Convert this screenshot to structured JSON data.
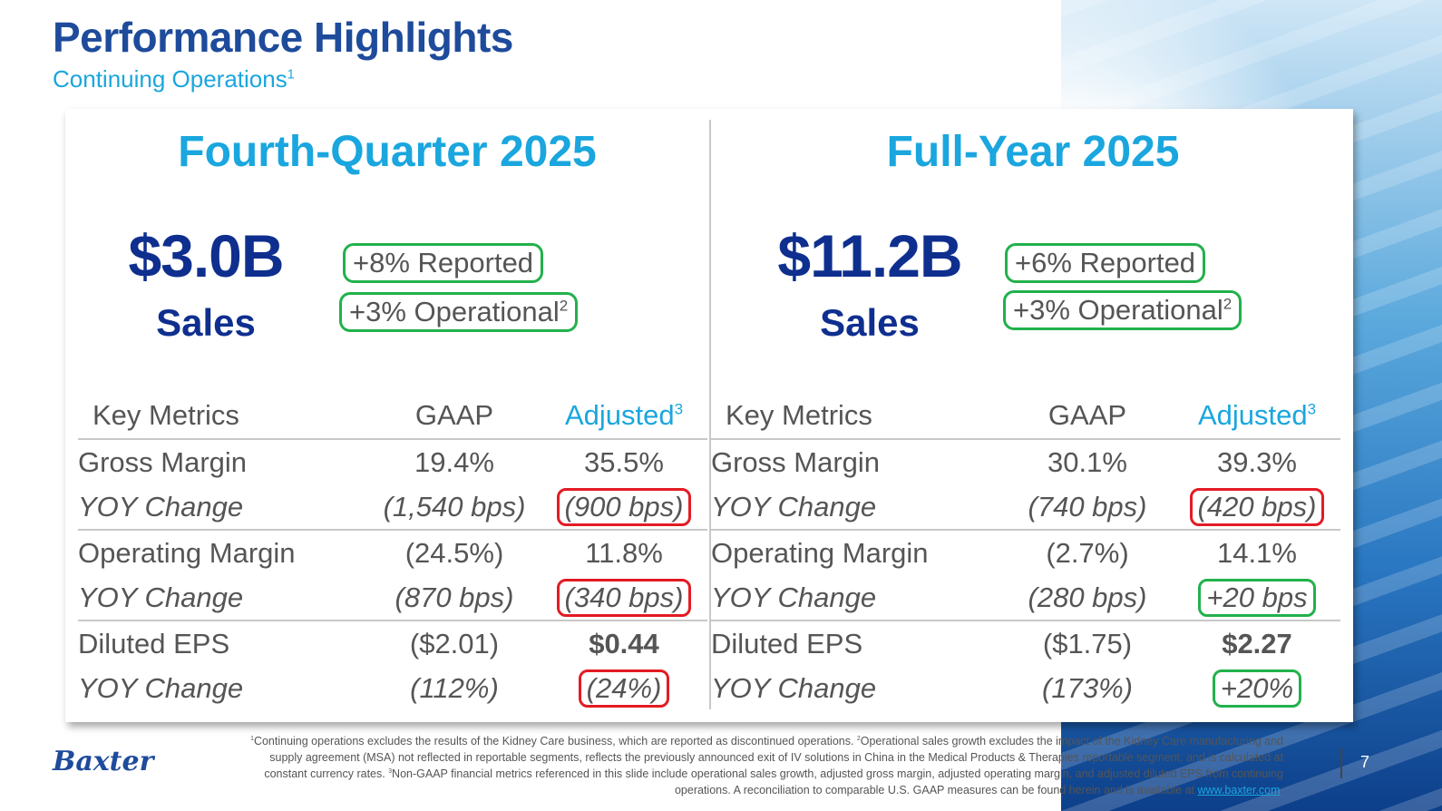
{
  "header": {
    "title": "Performance Highlights",
    "subtitle": "Continuing Operations",
    "subtitle_sup": "1"
  },
  "panels": [
    {
      "title": "Fourth-Quarter 2025",
      "sales_value": "$3.0B",
      "sales_label": "Sales",
      "reported_growth": "+8% Reported",
      "operational_growth": "+3% Operational",
      "operational_sup": "2",
      "table": {
        "headers": {
          "metric": "Key Metrics",
          "gaap": "GAAP",
          "adjusted": "Adjusted",
          "adjusted_sup": "3"
        },
        "rows": [
          {
            "metric": "Gross Margin",
            "gaap": "19.4%",
            "adjusted": "35.5%"
          },
          {
            "metric": "YOY Change",
            "gaap": "(1,540 bps)",
            "adjusted": "(900 bps)",
            "highlight": "red"
          },
          {
            "metric": "Operating Margin",
            "gaap": "(24.5%)",
            "adjusted": "11.8%"
          },
          {
            "metric": "YOY Change",
            "gaap": "(870 bps)",
            "adjusted": "(340 bps)",
            "highlight": "red"
          },
          {
            "metric": "Diluted EPS",
            "gaap": "($2.01)",
            "adjusted": "$0.44"
          },
          {
            "metric": "YOY Change",
            "gaap": "(112%)",
            "adjusted": "(24%)",
            "highlight": "red"
          }
        ]
      }
    },
    {
      "title": "Full-Year 2025",
      "sales_value": "$11.2B",
      "sales_label": "Sales",
      "reported_growth": "+6% Reported",
      "operational_growth": "+3% Operational",
      "operational_sup": "2",
      "table": {
        "headers": {
          "metric": "Key Metrics",
          "gaap": "GAAP",
          "adjusted": "Adjusted",
          "adjusted_sup": "3"
        },
        "rows": [
          {
            "metric": "Gross Margin",
            "gaap": "30.1%",
            "adjusted": "39.3%"
          },
          {
            "metric": "YOY Change",
            "gaap": "(740 bps)",
            "adjusted": "(420 bps)",
            "highlight": "red"
          },
          {
            "metric": "Operating Margin",
            "gaap": "(2.7%)",
            "adjusted": "14.1%"
          },
          {
            "metric": "YOY Change",
            "gaap": "(280 bps)",
            "adjusted": "+20 bps",
            "highlight": "green"
          },
          {
            "metric": "Diluted EPS",
            "gaap": "($1.75)",
            "adjusted": "$2.27"
          },
          {
            "metric": "YOY Change",
            "gaap": "(173%)",
            "adjusted": "+20%",
            "highlight": "green"
          }
        ]
      }
    }
  ],
  "footer": {
    "logo": "Baxter",
    "footnote_1_sup": "1",
    "footnote_1": "Continuing operations excludes the results of the Kidney Care business, which are reported as discontinued operations. ",
    "footnote_2_sup": "2",
    "footnote_2": "Operational sales growth excludes the impact of the Kidney Care manufacturing and supply agreement (MSA) not reflected in reportable segments, reflects the previously announced exit of IV solutions in China in the Medical Products & Therapies reportable segment, and is calculated at constant currency rates. ",
    "footnote_3_sup": "3",
    "footnote_3": "Non-GAAP financial metrics referenced in this slide include operational sales growth, adjusted gross margin, adjusted operating margin, and adjusted diluted EPS from continuing operations. A reconciliation to comparable U.S. GAAP measures can be found herein and is available at ",
    "link": "www.baxter.com",
    "end": ".",
    "page_number": "7"
  },
  "colors": {
    "title_navy": "#1e4b9b",
    "accent_cyan": "#1aa6de",
    "sales_navy": "#0f2f8f",
    "text_gray": "#555555",
    "highlight_red": "#e31b23",
    "highlight_green": "#22b14c"
  }
}
